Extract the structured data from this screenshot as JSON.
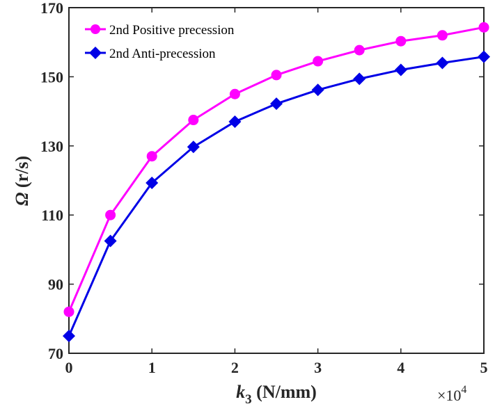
{
  "chart_data": {
    "type": "line",
    "x": [
      0,
      0.5,
      1,
      1.5,
      2,
      2.5,
      3,
      3.5,
      4,
      4.5,
      5
    ],
    "x_scale_factor": "×10^4",
    "x_multiplier_base": "×10",
    "x_multiplier_exp": "4",
    "series": [
      {
        "name": "2nd Positive precession",
        "color": "#ff00ff",
        "marker": "circle",
        "values": [
          82,
          110,
          127,
          137.5,
          145,
          150.5,
          154.5,
          157.7,
          160.3,
          162,
          164.3
        ]
      },
      {
        "name": "2nd Anti-precession",
        "color": "#0000e6",
        "marker": "diamond",
        "values": [
          75,
          102.5,
          119.3,
          129.7,
          137,
          142.2,
          146.2,
          149.4,
          152,
          154,
          155.8
        ]
      }
    ],
    "xlim": [
      0,
      5
    ],
    "ylim": [
      70,
      170
    ],
    "x_ticks": [
      "0",
      "1",
      "2",
      "3",
      "4",
      "5"
    ],
    "y_ticks": [
      "70",
      "90",
      "110",
      "130",
      "150",
      "170"
    ],
    "xlabel_main": "k",
    "xlabel_sub": "3",
    "xlabel_rest": " (N/mm)",
    "ylabel_symbol": "Ω",
    "ylabel_rest": " (r/s)",
    "legend_position": "top-left",
    "grid": false
  }
}
